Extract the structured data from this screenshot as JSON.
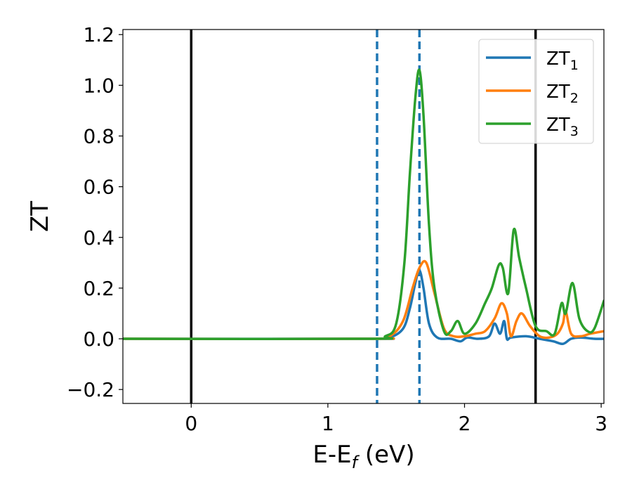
{
  "chart_data": {
    "type": "line",
    "xlabel": "E-E_f (eV)",
    "xlabel_parts": {
      "main": "E-E",
      "sub": "f",
      "unit": " (eV)"
    },
    "ylabel": "ZT",
    "xlim": [
      -0.5,
      3.02
    ],
    "ylim": [
      -0.255,
      1.22
    ],
    "x_ticks": [
      0,
      1,
      2,
      3
    ],
    "x_tick_labels": [
      "0",
      "1",
      "2",
      "3"
    ],
    "y_ticks": [
      -0.2,
      0.0,
      0.2,
      0.4,
      0.6,
      0.8,
      1.0,
      1.2
    ],
    "y_tick_labels": [
      "−0.2",
      "0.0",
      "0.2",
      "0.4",
      "0.6",
      "0.8",
      "1.0",
      "1.2"
    ],
    "legend_position": "top-right",
    "vertical_lines": [
      {
        "x": 0.0,
        "style": "solid",
        "color": "#000000"
      },
      {
        "x": 2.52,
        "style": "solid",
        "color": "#000000"
      },
      {
        "x": 1.36,
        "style": "dashed",
        "color": "#1f77b4"
      },
      {
        "x": 1.67,
        "style": "dashed",
        "color": "#1f77b4"
      }
    ],
    "series": [
      {
        "name": "ZT1",
        "label_main": "ZT",
        "label_sub": "1",
        "color": "#1f77b4",
        "x": [
          -0.5,
          1.3,
          1.45,
          1.55,
          1.6,
          1.64,
          1.67,
          1.7,
          1.74,
          1.8,
          1.9,
          1.97,
          2.02,
          2.1,
          2.18,
          2.22,
          2.26,
          2.29,
          2.31,
          2.34,
          2.45,
          2.55,
          2.65,
          2.72,
          2.78,
          2.85,
          2.95,
          3.02
        ],
        "y": [
          0.0,
          0.0,
          0.005,
          0.04,
          0.12,
          0.22,
          0.27,
          0.2,
          0.06,
          0.005,
          0.0,
          -0.01,
          0.005,
          0.0,
          0.01,
          0.06,
          0.02,
          0.07,
          0.0,
          0.005,
          0.01,
          0.0,
          -0.01,
          -0.02,
          0.0,
          0.005,
          0.0,
          0.0
        ]
      },
      {
        "name": "ZT2",
        "label_main": "ZT",
        "label_sub": "2",
        "color": "#ff7f0e",
        "x": [
          -0.5,
          1.3,
          1.45,
          1.55,
          1.62,
          1.67,
          1.72,
          1.78,
          1.85,
          1.92,
          2.0,
          2.08,
          2.15,
          2.22,
          2.27,
          2.31,
          2.34,
          2.38,
          2.42,
          2.48,
          2.55,
          2.62,
          2.68,
          2.72,
          2.74,
          2.78,
          2.85,
          2.92,
          3.02
        ],
        "y": [
          0.0,
          0.0,
          0.01,
          0.07,
          0.2,
          0.28,
          0.3,
          0.18,
          0.04,
          0.01,
          0.01,
          0.02,
          0.03,
          0.08,
          0.14,
          0.1,
          0.01,
          0.07,
          0.1,
          0.05,
          0.01,
          0.005,
          0.02,
          0.06,
          0.11,
          0.02,
          0.01,
          0.02,
          0.03
        ]
      },
      {
        "name": "ZT3",
        "label_main": "ZT",
        "label_sub": "3",
        "color": "#2ca02c",
        "x": [
          -0.5,
          1.3,
          1.42,
          1.5,
          1.56,
          1.6,
          1.64,
          1.67,
          1.7,
          1.74,
          1.78,
          1.85,
          1.9,
          1.95,
          2.0,
          2.08,
          2.15,
          2.2,
          2.25,
          2.28,
          2.32,
          2.36,
          2.4,
          2.45,
          2.52,
          2.6,
          2.66,
          2.71,
          2.74,
          2.79,
          2.84,
          2.9,
          2.95,
          3.02
        ],
        "y": [
          0.0,
          0.0,
          0.01,
          0.06,
          0.3,
          0.65,
          0.95,
          1.06,
          0.88,
          0.45,
          0.2,
          0.03,
          0.03,
          0.07,
          0.02,
          0.06,
          0.14,
          0.2,
          0.29,
          0.28,
          0.18,
          0.43,
          0.32,
          0.2,
          0.05,
          0.03,
          0.02,
          0.14,
          0.1,
          0.22,
          0.08,
          0.03,
          0.04,
          0.15
        ]
      }
    ]
  }
}
